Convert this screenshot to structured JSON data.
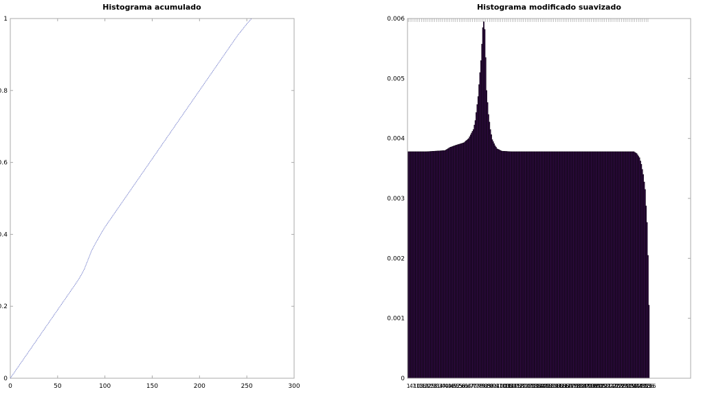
{
  "chart_data": [
    {
      "type": "line",
      "title": "Histograma acumulado",
      "xlabel": "",
      "ylabel": "",
      "xlim": [
        0,
        300
      ],
      "ylim": [
        0,
        1
      ],
      "xticks": [
        0,
        50,
        100,
        150,
        200,
        250,
        300
      ],
      "xtick_labels": [
        "0",
        "50",
        "100",
        "150",
        "200",
        "250",
        "300"
      ],
      "yticks": [
        0,
        0.2,
        0.4,
        0.6,
        0.8,
        1
      ],
      "ytick_labels": [
        "0",
        "0.2",
        "0.4",
        "0.6",
        "0.8",
        "1"
      ],
      "grid": false,
      "line_color": "#6b76c8",
      "series": [
        {
          "x": [
            0,
            10,
            20,
            30,
            40,
            50,
            60,
            70,
            75,
            78,
            80,
            83,
            86,
            90,
            95,
            100,
            110,
            120,
            130,
            140,
            150,
            160,
            170,
            180,
            190,
            200,
            210,
            220,
            230,
            240,
            250,
            255
          ],
          "values": [
            0,
            0.038,
            0.076,
            0.114,
            0.152,
            0.19,
            0.228,
            0.266,
            0.287,
            0.302,
            0.315,
            0.335,
            0.355,
            0.375,
            0.398,
            0.42,
            0.458,
            0.496,
            0.534,
            0.572,
            0.61,
            0.648,
            0.686,
            0.724,
            0.762,
            0.8,
            0.838,
            0.876,
            0.914,
            0.952,
            0.985,
            1.0
          ]
        }
      ]
    },
    {
      "type": "bar",
      "title": "Histograma modificado suavizado",
      "xlabel": "",
      "ylabel": "",
      "ylim": [
        0,
        0.006
      ],
      "yticks": [
        0,
        0.001,
        0.002,
        0.003,
        0.004,
        0.005,
        0.006
      ],
      "ytick_labels": [
        "0",
        "0.001",
        "0.002",
        "0.003",
        "0.004",
        "0.005",
        "0.006"
      ],
      "bar_count": 256,
      "bar_color": "#2e0a40",
      "bar_edge_color": "#000000",
      "grid": false,
      "first_tick_label": "1",
      "last_tick_label": "256",
      "series": [
        {
          "bins": [
            1,
            20,
            40,
            45,
            50,
            60,
            65,
            70,
            72,
            75,
            78,
            80,
            81,
            82,
            83,
            84,
            86,
            88,
            90,
            93,
            95,
            100,
            110,
            150,
            200,
            230,
            240,
            243,
            246,
            248,
            250,
            252,
            254,
            255,
            256
          ],
          "values": [
            0.00378,
            0.00378,
            0.0038,
            0.00385,
            0.00388,
            0.00393,
            0.004,
            0.00415,
            0.0043,
            0.0047,
            0.0053,
            0.00585,
            0.00595,
            0.00582,
            0.00535,
            0.0048,
            0.0044,
            0.00415,
            0.00398,
            0.00388,
            0.00383,
            0.00379,
            0.00378,
            0.00378,
            0.00378,
            0.00378,
            0.00378,
            0.00375,
            0.00368,
            0.00357,
            0.0034,
            0.00315,
            0.0026,
            0.00205,
            0.00122
          ]
        }
      ]
    }
  ]
}
